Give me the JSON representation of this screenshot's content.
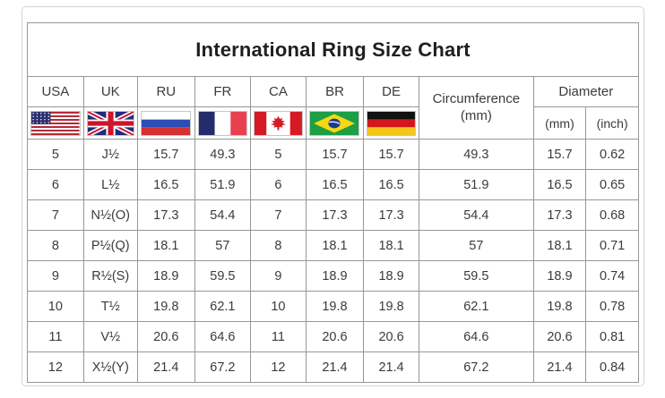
{
  "title": "International Ring Size Chart",
  "header": {
    "countries": [
      {
        "code": "USA",
        "flag_icon": "usa-flag-icon"
      },
      {
        "code": "UK",
        "flag_icon": "uk-flag-icon"
      },
      {
        "code": "RU",
        "flag_icon": "russia-flag-icon"
      },
      {
        "code": "FR",
        "flag_icon": "france-flag-icon"
      },
      {
        "code": "CA",
        "flag_icon": "canada-flag-icon"
      },
      {
        "code": "BR",
        "flag_icon": "brazil-flag-icon"
      },
      {
        "code": "DE",
        "flag_icon": "germany-flag-icon"
      }
    ],
    "circumference": {
      "line1": "Circumference",
      "line2": "(mm)"
    },
    "diameter": {
      "label": "Diameter",
      "sub_mm": "(mm)",
      "sub_inch": "(inch)"
    }
  },
  "chart_data": {
    "type": "table",
    "title": "International Ring Size Chart",
    "columns": [
      "USA",
      "UK",
      "RU",
      "FR",
      "CA",
      "BR",
      "DE",
      "Circumference (mm)",
      "Diameter (mm)",
      "Diameter (inch)"
    ],
    "rows": [
      [
        "5",
        "J½",
        "15.7",
        "49.3",
        "5",
        "15.7",
        "15.7",
        "49.3",
        "15.7",
        "0.62"
      ],
      [
        "6",
        "L½",
        "16.5",
        "51.9",
        "6",
        "16.5",
        "16.5",
        "51.9",
        "16.5",
        "0.65"
      ],
      [
        "7",
        "N½(O)",
        "17.3",
        "54.4",
        "7",
        "17.3",
        "17.3",
        "54.4",
        "17.3",
        "0.68"
      ],
      [
        "8",
        "P½(Q)",
        "18.1",
        "57",
        "8",
        "18.1",
        "18.1",
        "57",
        "18.1",
        "0.71"
      ],
      [
        "9",
        "R½(S)",
        "18.9",
        "59.5",
        "9",
        "18.9",
        "18.9",
        "59.5",
        "18.9",
        "0.74"
      ],
      [
        "10",
        "T½",
        "19.8",
        "62.1",
        "10",
        "19.8",
        "19.8",
        "62.1",
        "19.8",
        "0.78"
      ],
      [
        "11",
        "V½",
        "20.6",
        "64.6",
        "11",
        "20.6",
        "20.6",
        "64.6",
        "20.6",
        "0.81"
      ],
      [
        "12",
        "X½(Y)",
        "21.4",
        "67.2",
        "12",
        "21.4",
        "21.4",
        "67.2",
        "21.4",
        "0.84"
      ]
    ]
  },
  "colors": {
    "background": "#ffffff",
    "grid_border": "#979797",
    "frame_border": "#d4d4d4",
    "text": "#3b3b3b",
    "title_text": "#1f1f1f"
  }
}
